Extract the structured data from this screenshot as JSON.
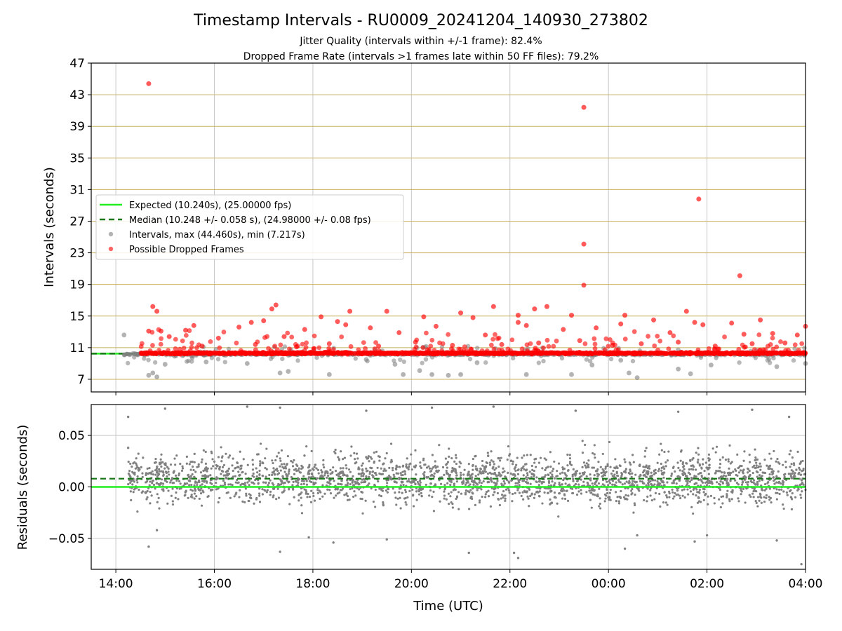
{
  "figure": {
    "title": "Timestamp Intervals - RU0009_20241204_140930_273802",
    "subtitle_1": "Jitter Quality (intervals within +/-1 frame): 82.4%",
    "subtitle_2": "Dropped Frame Rate (intervals >1 frames late within 50 FF files): 79.2%"
  },
  "colors": {
    "expected": "#22ee22",
    "median": "#1a7a1a",
    "intervals": "#808080",
    "dropped": "#ff0000",
    "ygrid": "#c8b060",
    "xgrid": "#c8c8c8"
  },
  "chart_data": [
    {
      "type": "scatter",
      "panel": "intervals",
      "ylabel": "Intervals (seconds)",
      "ylim": [
        5.4,
        47
      ],
      "yticks": [
        "7",
        "11",
        "15",
        "19",
        "23",
        "27",
        "31",
        "35",
        "39",
        "43",
        "47"
      ],
      "grid": "horizontal gold lines at each y tick, vertical gray lines at each x tick",
      "legend_position": "middle-left",
      "legend": [
        {
          "label": "Expected (10.240s), (25.00000 fps)",
          "style": "solid line",
          "color": "#22ee22"
        },
        {
          "label": "Median (10.248 +/- 0.058 s), (24.98000 +/- 0.08 fps)",
          "style": "dashed line",
          "color": "#1a7a1a"
        },
        {
          "label": "Intervals, max (44.460s), min (7.217s)",
          "style": "marker",
          "color": "#808080"
        },
        {
          "label": "Possible Dropped Frames",
          "style": "marker",
          "color": "#ff0000"
        }
      ],
      "lines": {
        "expected": 10.24,
        "median": 10.248
      },
      "series": [
        {
          "name": "Possible Dropped Frames",
          "note": "dense band of points near 10.3 s from 14:00 to 04:00 plus scattered outliers",
          "points": [
            [
              "14:40",
              44.4
            ],
            [
              "23:30",
              41.4
            ],
            [
              "01:50",
              29.8
            ],
            [
              "23:30",
              24.1
            ],
            [
              "02:40",
              20.1
            ],
            [
              "23:30",
              18.9
            ],
            [
              "14:45",
              16.2
            ],
            [
              "14:50",
              15.6
            ],
            [
              "17:15",
              16.4
            ],
            [
              "17:10",
              15.9
            ],
            [
              "19:30",
              15.6
            ],
            [
              "18:10",
              14.9
            ],
            [
              "18:30",
              14.3
            ],
            [
              "18:45",
              15.6
            ],
            [
              "20:15",
              14.9
            ],
            [
              "21:00",
              15.4
            ],
            [
              "21:15",
              14.8
            ],
            [
              "21:40",
              16.2
            ],
            [
              "22:10",
              15.1
            ],
            [
              "22:10",
              14.2
            ],
            [
              "22:30",
              15.9
            ],
            [
              "22:45",
              16.2
            ],
            [
              "23:15",
              15.1
            ],
            [
              "00:20",
              15.1
            ],
            [
              "00:55",
              14.5
            ],
            [
              "01:35",
              15.6
            ],
            [
              "01:45",
              14.2
            ],
            [
              "02:30",
              14.1
            ],
            [
              "03:05",
              14.5
            ],
            [
              "04:00",
              13.7
            ],
            [
              "14:40",
              13.1
            ],
            [
              "14:55",
              13.1
            ],
            [
              "15:05",
              12.4
            ],
            [
              "15:25",
              13.2
            ],
            [
              "15:35",
              13.8
            ],
            [
              "16:05",
              12.2
            ],
            [
              "16:30",
              13.6
            ],
            [
              "16:45",
              14.2
            ],
            [
              "17:00",
              14.4
            ],
            [
              "17:25",
              12.4
            ],
            [
              "17:50",
              13.3
            ],
            [
              "18:40",
              13.9
            ],
            [
              "19:10",
              13.5
            ],
            [
              "19:45",
              12.9
            ],
            [
              "20:30",
              13.7
            ],
            [
              "21:30",
              12.6
            ],
            [
              "22:20",
              13.8
            ],
            [
              "23:05",
              13.3
            ],
            [
              "23:45",
              13.5
            ],
            [
              "00:15",
              14.0
            ],
            [
              "01:15",
              12.9
            ],
            [
              "01:55",
              13.9
            ],
            [
              "02:45",
              12.7
            ],
            [
              "03:20",
              12.8
            ],
            [
              "03:50",
              12.6
            ],
            [
              "15:45",
              11.2
            ],
            [
              "16:50",
              11.4
            ],
            [
              "17:40",
              11.1
            ],
            [
              "18:20",
              11.5
            ],
            [
              "19:20",
              11.2
            ],
            [
              "20:05",
              11.7
            ],
            [
              "20:50",
              11.3
            ],
            [
              "21:50",
              11.4
            ],
            [
              "22:35",
              11.6
            ],
            [
              "23:25",
              11.9
            ],
            [
              "00:05",
              11.3
            ],
            [
              "00:40",
              11.5
            ],
            [
              "01:25",
              11.7
            ],
            [
              "02:10",
              11.2
            ],
            [
              "02:55",
              11.5
            ],
            [
              "03:35",
              11.6
            ]
          ]
        },
        {
          "name": "Intervals",
          "note": "gray points concentrated near 10.2 s; low outliers down to about 7.2 s",
          "points": [
            [
              "14:10",
              12.6
            ],
            [
              "14:40",
              7.5
            ],
            [
              "14:45",
              7.8
            ],
            [
              "14:50",
              7.3
            ],
            [
              "15:00",
              8.9
            ],
            [
              "15:50",
              9.2
            ],
            [
              "16:40",
              9.0
            ],
            [
              "17:20",
              7.8
            ],
            [
              "17:30",
              8.0
            ],
            [
              "18:20",
              7.6
            ],
            [
              "19:05",
              9.5
            ],
            [
              "19:40",
              8.9
            ],
            [
              "19:50",
              7.6
            ],
            [
              "20:10",
              8.1
            ],
            [
              "20:25",
              7.6
            ],
            [
              "20:45",
              7.5
            ],
            [
              "21:00",
              7.6
            ],
            [
              "21:20",
              9.1
            ],
            [
              "22:20",
              7.6
            ],
            [
              "23:15",
              7.6
            ],
            [
              "23:40",
              8.8
            ],
            [
              "00:15",
              9.4
            ],
            [
              "00:25",
              7.8
            ],
            [
              "00:35",
              7.2
            ],
            [
              "01:25",
              8.3
            ],
            [
              "01:40",
              7.7
            ],
            [
              "02:05",
              8.8
            ],
            [
              "03:25",
              8.6
            ],
            [
              "04:00",
              9.0
            ]
          ]
        }
      ]
    },
    {
      "type": "scatter",
      "panel": "residuals",
      "xlabel": "Time (UTC)",
      "ylabel": "Residuals (seconds)",
      "ylim": [
        -0.08,
        0.08
      ],
      "yticks": [
        "−0.05",
        "0.00",
        "0.05"
      ],
      "xticks": [
        "14:00",
        "16:00",
        "18:00",
        "20:00",
        "22:00",
        "00:00",
        "02:00",
        "04:00"
      ],
      "x_range": [
        "13:30",
        "04:00"
      ],
      "grid": "on",
      "lines": {
        "expected": 0.0,
        "median": 0.008
      },
      "series": [
        {
          "name": "Residuals",
          "note": "dense gray point cloud spanning 14:15 to 04:00, centered near 0.008 s, mostly within +/-0.03 s",
          "points": [
            [
              "14:15",
              0.068
            ],
            [
              "14:15",
              0.038
            ],
            [
              "14:40",
              -0.058
            ],
            [
              "14:50",
              -0.042
            ],
            [
              "17:20",
              -0.063
            ],
            [
              "17:55",
              -0.049
            ],
            [
              "18:25",
              -0.054
            ],
            [
              "19:30",
              -0.051
            ],
            [
              "21:10",
              -0.064
            ],
            [
              "22:05",
              -0.064
            ],
            [
              "22:10",
              -0.069
            ],
            [
              "00:20",
              -0.06
            ],
            [
              "00:35",
              -0.047
            ],
            [
              "01:45",
              -0.053
            ],
            [
              "02:00",
              -0.047
            ],
            [
              "03:25",
              -0.052
            ],
            [
              "03:55",
              -0.075
            ],
            [
              "15:00",
              0.076
            ],
            [
              "16:40",
              0.078
            ],
            [
              "17:20",
              0.077
            ],
            [
              "19:05",
              0.074
            ],
            [
              "20:25",
              0.077
            ],
            [
              "21:40",
              0.078
            ],
            [
              "23:20",
              0.074
            ],
            [
              "01:25",
              0.073
            ],
            [
              "02:55",
              0.075
            ],
            [
              "03:40",
              0.068
            ]
          ]
        }
      ]
    }
  ]
}
